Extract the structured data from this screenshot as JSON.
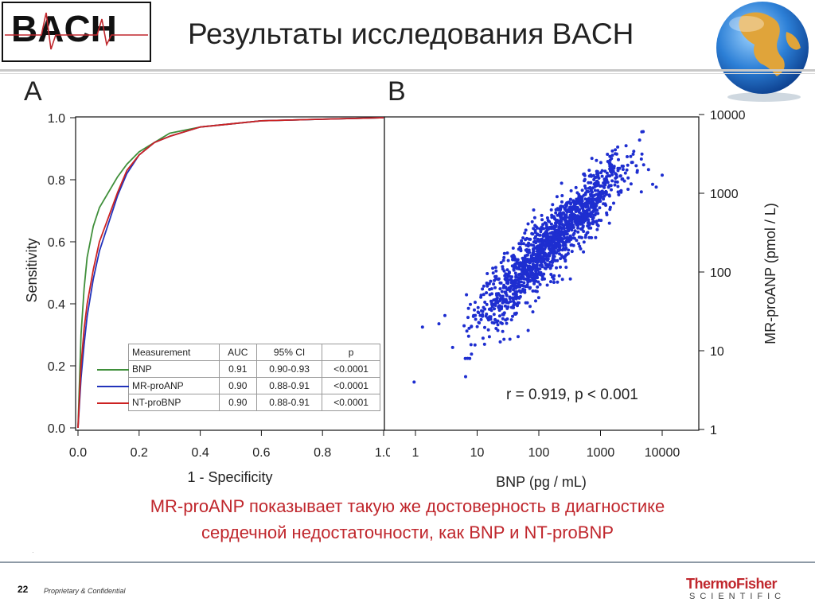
{
  "header": {
    "logo_text": "BACH",
    "title": "Результаты исследования BACH"
  },
  "panels": {
    "a_label": "A",
    "b_label": "B"
  },
  "legend_table": {
    "columns": [
      "Measurement",
      "AUC",
      "95% CI",
      "p"
    ],
    "rows": [
      {
        "measurement": "BNP",
        "auc": "0.91",
        "ci": "0.90-0.93",
        "p": "<0.0001",
        "color": "#3f8f3a"
      },
      {
        "measurement": "MR-proANP",
        "auc": "0.90",
        "ci": "0.88-0.91",
        "p": "<0.0001",
        "color": "#2233bb"
      },
      {
        "measurement": "NT-proBNP",
        "auc": "0.90",
        "ci": "0.88-0.91",
        "p": "<0.0001",
        "color": "#cc2222"
      }
    ]
  },
  "scatter_stat": "r = 0.919,  p < 0.001",
  "conclusion": {
    "line1": "MR-proANP показывает такую же достоверность в диагностике",
    "line2": "сердечной недостаточности, как BNP и NT-proBNP"
  },
  "footer": {
    "page_number": "22",
    "confidential": "Proprietary & Confidential",
    "brand_top": "ThermoFisher",
    "brand_bottom": "SCIENTIFIC"
  },
  "chart_data": [
    {
      "type": "line",
      "xlabel": "1 - Specificity",
      "ylabel": "Sensitivity",
      "xlim": [
        0,
        1
      ],
      "ylim": [
        0,
        1
      ],
      "x_ticks": [
        "0.0",
        "0.2",
        "0.4",
        "0.6",
        "0.8",
        "1.0"
      ],
      "y_ticks": [
        "0.0",
        "0.2",
        "0.4",
        "0.6",
        "0.8",
        "1.0"
      ],
      "series": [
        {
          "name": "BNP",
          "color": "#3f8f3a",
          "x": [
            0,
            0.01,
            0.02,
            0.03,
            0.05,
            0.07,
            0.1,
            0.13,
            0.16,
            0.2,
            0.25,
            0.3,
            0.4,
            0.5,
            0.6,
            0.8,
            1.0
          ],
          "y": [
            0,
            0.3,
            0.45,
            0.55,
            0.65,
            0.71,
            0.76,
            0.81,
            0.85,
            0.89,
            0.92,
            0.95,
            0.97,
            0.98,
            0.99,
            0.995,
            1.0
          ]
        },
        {
          "name": "MR-proANP",
          "color": "#2233bb",
          "x": [
            0,
            0.01,
            0.02,
            0.03,
            0.05,
            0.07,
            0.1,
            0.13,
            0.16,
            0.2,
            0.25,
            0.3,
            0.4,
            0.5,
            0.6,
            0.8,
            1.0
          ],
          "y": [
            0,
            0.16,
            0.27,
            0.36,
            0.48,
            0.57,
            0.66,
            0.75,
            0.82,
            0.88,
            0.92,
            0.94,
            0.97,
            0.98,
            0.99,
            0.995,
            1.0
          ]
        },
        {
          "name": "NT-proBNP",
          "color": "#cc2222",
          "x": [
            0,
            0.01,
            0.02,
            0.03,
            0.05,
            0.07,
            0.1,
            0.13,
            0.16,
            0.2,
            0.25,
            0.3,
            0.4,
            0.5,
            0.6,
            0.8,
            1.0
          ],
          "y": [
            0,
            0.2,
            0.32,
            0.4,
            0.51,
            0.6,
            0.68,
            0.76,
            0.83,
            0.88,
            0.92,
            0.94,
            0.97,
            0.98,
            0.99,
            0.995,
            1.0
          ]
        }
      ]
    },
    {
      "type": "scatter",
      "scale": "log",
      "xlabel": "BNP (pg / mL)",
      "ylabel": "MR-proANP (pmol / L)",
      "xlim": [
        1,
        10000
      ],
      "ylim": [
        1,
        10000
      ],
      "x_ticks": [
        "1",
        "10",
        "100",
        "1000",
        "10000"
      ],
      "y_ticks": [
        "1",
        "10",
        "100",
        "1000",
        "10000"
      ],
      "color": "#1e2ed0",
      "r": 0.919,
      "outliers": [
        {
          "x": 0.95,
          "y": 4
        },
        {
          "x": 1.3,
          "y": 20
        },
        {
          "x": 2.4,
          "y": 22
        },
        {
          "x": 3,
          "y": 28
        },
        {
          "x": 9,
          "y": 33
        },
        {
          "x": 4,
          "y": 11
        },
        {
          "x": 7,
          "y": 8
        },
        {
          "x": 6000,
          "y": 2000
        },
        {
          "x": 7000,
          "y": 1300
        },
        {
          "x": 8000,
          "y": 1200
        },
        {
          "x": 5000,
          "y": 2300
        },
        {
          "x": 10000,
          "y": 1700
        }
      ],
      "cloud": {
        "count": 1450,
        "x_log_mean": 2.2,
        "x_log_sd": 0.65,
        "slope": 0.8,
        "intercept": 0.6,
        "residual_sd": 0.2
      }
    }
  ]
}
